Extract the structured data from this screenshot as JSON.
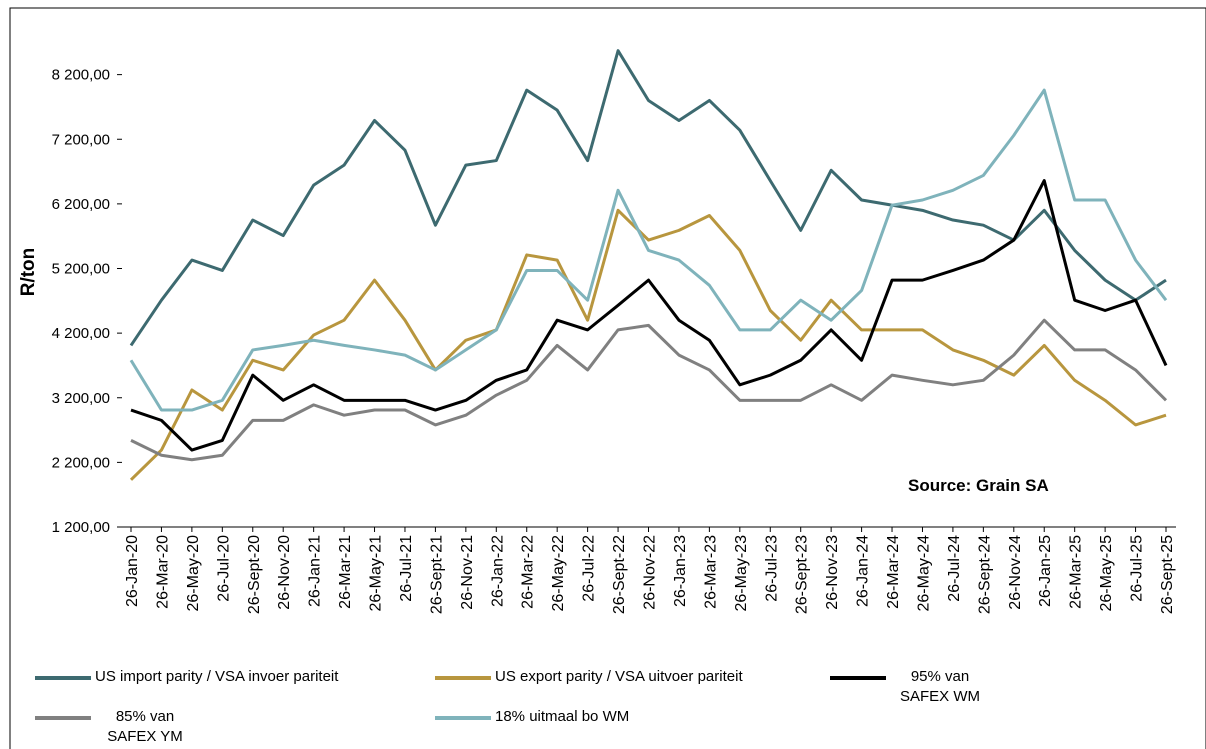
{
  "chart_data": {
    "type": "line",
    "y_axis_label": "R/ton",
    "annotation": "Source: Grain SA",
    "categories": [
      "26-Jan-20",
      "26-Mar-20",
      "26-May-20",
      "26-Jul-20",
      "26-Sept-20",
      "26-Nov-20",
      "26-Jan-21",
      "26-Mar-21",
      "26-May-21",
      "26-Jul-21",
      "26-Sept-21",
      "26-Nov-21",
      "26-Jan-22",
      "26-Mar-22",
      "26-May-22",
      "26-Jul-22",
      "26-Sept-22",
      "26-Nov-22",
      "26-Jan-23",
      "26-Mar-23",
      "26-May-23",
      "26-Jul-23",
      "26-Sept-23",
      "26-Nov-23",
      "26-Jan-24",
      "26-Mar-24",
      "26-May-24",
      "26-Jul-24",
      "26-Sept-24",
      "26-Nov-24",
      "26-Jan-25",
      "26-Mar-25",
      "26-May-25",
      "26-Jul-25",
      "26-Sept-25"
    ],
    "series": [
      {
        "name": "US import parity / VSA invoer pariteit",
        "color": "#3d6a70",
        "values": [
          4010,
          4710,
          5330,
          5170,
          5950,
          5710,
          6490,
          6800,
          7490,
          7030,
          5870,
          6800,
          6870,
          7960,
          7650,
          6870,
          8570,
          7800,
          7490,
          7800,
          7340,
          6560,
          5790,
          6720,
          6260,
          6180,
          6100,
          5950,
          5870,
          5640,
          6100,
          5480,
          5020,
          4710,
          5020
        ]
      },
      {
        "name": "US export parity / VSA uitvoer pariteit",
        "color": "#b8963e",
        "values": [
          1930,
          2390,
          3320,
          3010,
          3780,
          3630,
          4170,
          4400,
          5020,
          4400,
          3630,
          4090,
          4250,
          5410,
          5330,
          4400,
          6100,
          5640,
          5790,
          6020,
          5480,
          4550,
          4090,
          4710,
          4250,
          4250,
          4250,
          3940,
          3780,
          3550,
          4010,
          3470,
          3160,
          2780,
          2930
        ]
      },
      {
        "name": "95% van SAFEX WM",
        "color": "#000000",
        "values": [
          3010,
          2850,
          2390,
          2540,
          3550,
          3160,
          3400,
          3160,
          3160,
          3160,
          3010,
          3160,
          3470,
          3630,
          4400,
          4250,
          4630,
          5020,
          4400,
          4090,
          3400,
          3550,
          3780,
          4250,
          3780,
          5020,
          5020,
          5170,
          5330,
          5640,
          6560,
          4710,
          4550,
          4710,
          3700
        ]
      },
      {
        "name": "85% van SAFEX YM",
        "color": "#808080",
        "values": [
          2540,
          2310,
          2240,
          2310,
          2850,
          2850,
          3090,
          2930,
          3010,
          3010,
          2780,
          2930,
          3240,
          3470,
          4010,
          3630,
          4250,
          4320,
          3860,
          3630,
          3160,
          3160,
          3160,
          3400,
          3160,
          3550,
          3470,
          3400,
          3470,
          3860,
          4400,
          3940,
          3940,
          3630,
          3160
        ]
      },
      {
        "name": "18% uitmaal bo WM",
        "color": "#7fb3bb",
        "values": [
          3780,
          3010,
          3010,
          3160,
          3940,
          4010,
          4090,
          4010,
          3940,
          3860,
          3630,
          3940,
          4250,
          5170,
          5170,
          4710,
          6410,
          5480,
          5330,
          4940,
          4250,
          4250,
          4710,
          4400,
          4860,
          6180,
          6260,
          6410,
          6640,
          7260,
          7960,
          6260,
          6260,
          5330,
          4710
        ]
      }
    ],
    "ylim": [
      1200,
      9200
    ],
    "yticks": [
      {
        "value": 1200,
        "label": "1 200,00"
      },
      {
        "value": 2200,
        "label": "2 200,00"
      },
      {
        "value": 3200,
        "label": "3 200,00"
      },
      {
        "value": 4200,
        "label": "4 200,00"
      },
      {
        "value": 5200,
        "label": "5 200,00"
      },
      {
        "value": 6200,
        "label": "6 200,00"
      },
      {
        "value": 7200,
        "label": "7 200,00"
      },
      {
        "value": 8200,
        "label": "8 200,00"
      }
    ],
    "grid": false,
    "legend": "bottom"
  }
}
